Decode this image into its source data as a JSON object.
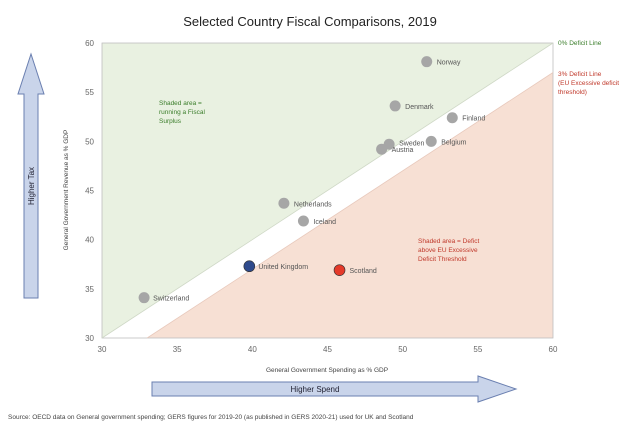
{
  "chart_data": {
    "type": "scatter",
    "title": "Selected Country Fiscal Comparisons, 2019",
    "xlabel": "General Government Spending as % GDP",
    "ylabel": "General Government Revenue as % GDP",
    "xlim": [
      30,
      60
    ],
    "ylim": [
      30,
      60
    ],
    "xticks": [
      "30",
      "35",
      "40",
      "45",
      "50",
      "55",
      "60"
    ],
    "yticks": [
      "30",
      "35",
      "40",
      "45",
      "50",
      "55",
      "60"
    ],
    "points": [
      {
        "name": "Norway",
        "x": 51.6,
        "y": 58.1,
        "color": "#a6a6a6"
      },
      {
        "name": "Denmark",
        "x": 49.5,
        "y": 53.6,
        "color": "#a6a6a6"
      },
      {
        "name": "Finland",
        "x": 53.3,
        "y": 52.4,
        "color": "#a6a6a6"
      },
      {
        "name": "Sweden",
        "x": 49.1,
        "y": 49.7,
        "color": "#a6a6a6"
      },
      {
        "name": "Austria",
        "x": 48.6,
        "y": 49.2,
        "color": "#a6a6a6"
      },
      {
        "name": "Belgium",
        "x": 51.9,
        "y": 50.0,
        "color": "#a6a6a6"
      },
      {
        "name": "Netherlands",
        "x": 42.1,
        "y": 43.7,
        "color": "#a6a6a6"
      },
      {
        "name": "Iceland",
        "x": 43.4,
        "y": 41.9,
        "color": "#a6a6a6"
      },
      {
        "name": "United Kingdom",
        "x": 39.8,
        "y": 37.3,
        "color": "#2e4a8c"
      },
      {
        "name": "Scotland",
        "x": 45.8,
        "y": 36.9,
        "color": "#e53a2a"
      },
      {
        "name": "Switzerland",
        "x": 32.8,
        "y": 34.1,
        "color": "#a6a6a6"
      }
    ],
    "lines": [
      {
        "name": "0% Deficit Line",
        "offset": 0,
        "color": "#3a7d2a"
      },
      {
        "name": "3% Deficit Line\n(EU Excessive deficit\nthreshold)",
        "offset": -3,
        "color": "#c0392b"
      }
    ],
    "annotations": {
      "surplus": "Shaded area =\nrunning a Fiscal\nSurplus",
      "deficit": "Shaded area = Defict\nabove EU Excessive\nDeficit Threshold"
    }
  },
  "arrows": {
    "x_label": "Higher Spend",
    "y_label": "Higher Tax"
  },
  "source": "Source: OECD data on General government spending; GERS figures for 2019-20 (as published in GERS 2020-21) used for UK and Scotland",
  "colors": {
    "surplus_fill": "#e9f1e1",
    "deficit_fill": "#f7e0d4",
    "arrow_fill": "#c9d4ea",
    "arrow_stroke": "#6a7fb0"
  }
}
